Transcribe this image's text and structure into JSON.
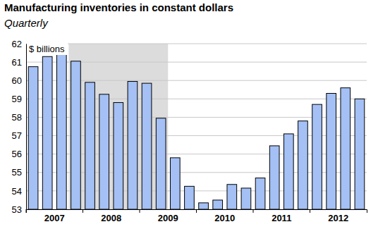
{
  "chart_data": {
    "type": "bar",
    "title": "Manufacturing inventories in constant dollars",
    "subtitle": "Quarterly",
    "y_label": "$ billions",
    "categories": [
      "2007",
      null,
      null,
      null,
      "2008",
      null,
      null,
      null,
      "2009",
      null,
      null,
      null,
      "2010",
      null,
      null,
      null,
      "2011",
      null,
      null,
      null,
      "2012",
      null,
      null,
      null
    ],
    "values": [
      60.75,
      61.3,
      61.5,
      61.05,
      59.9,
      59.25,
      58.8,
      59.95,
      59.85,
      57.95,
      55.8,
      54.25,
      53.35,
      53.5,
      54.35,
      54.15,
      54.7,
      56.45,
      57.1,
      57.8,
      58.7,
      59.3,
      59.6,
      59.0
    ],
    "color": "#a4c0f4",
    "shaded_range": [
      3,
      9
    ],
    "ylim": [
      53,
      62
    ],
    "yticks": [
      53,
      54,
      55,
      56,
      57,
      58,
      59,
      60,
      61,
      62
    ],
    "grid": true
  }
}
